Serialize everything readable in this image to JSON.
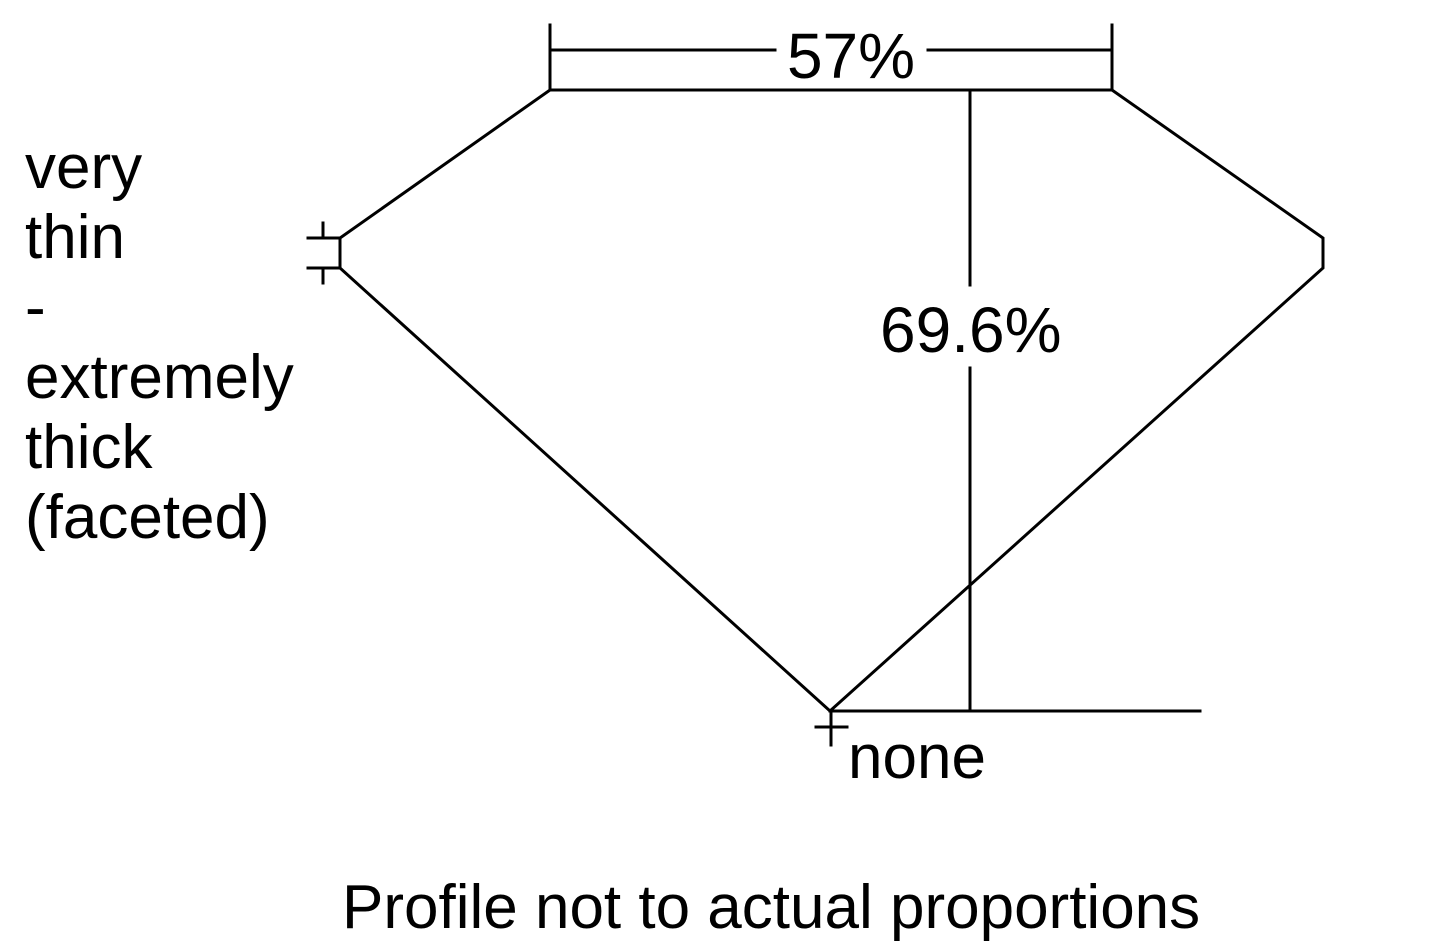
{
  "diagram": {
    "table_label": "57%",
    "depth_label": "69.6%",
    "girdle_label_lines": [
      "very",
      "thin",
      "-",
      "extremely",
      "thick",
      "(faceted)"
    ],
    "culet_label": "none",
    "footnote": "Profile not to actual proportions",
    "line_color": "#000000",
    "background_color": "#ffffff"
  }
}
